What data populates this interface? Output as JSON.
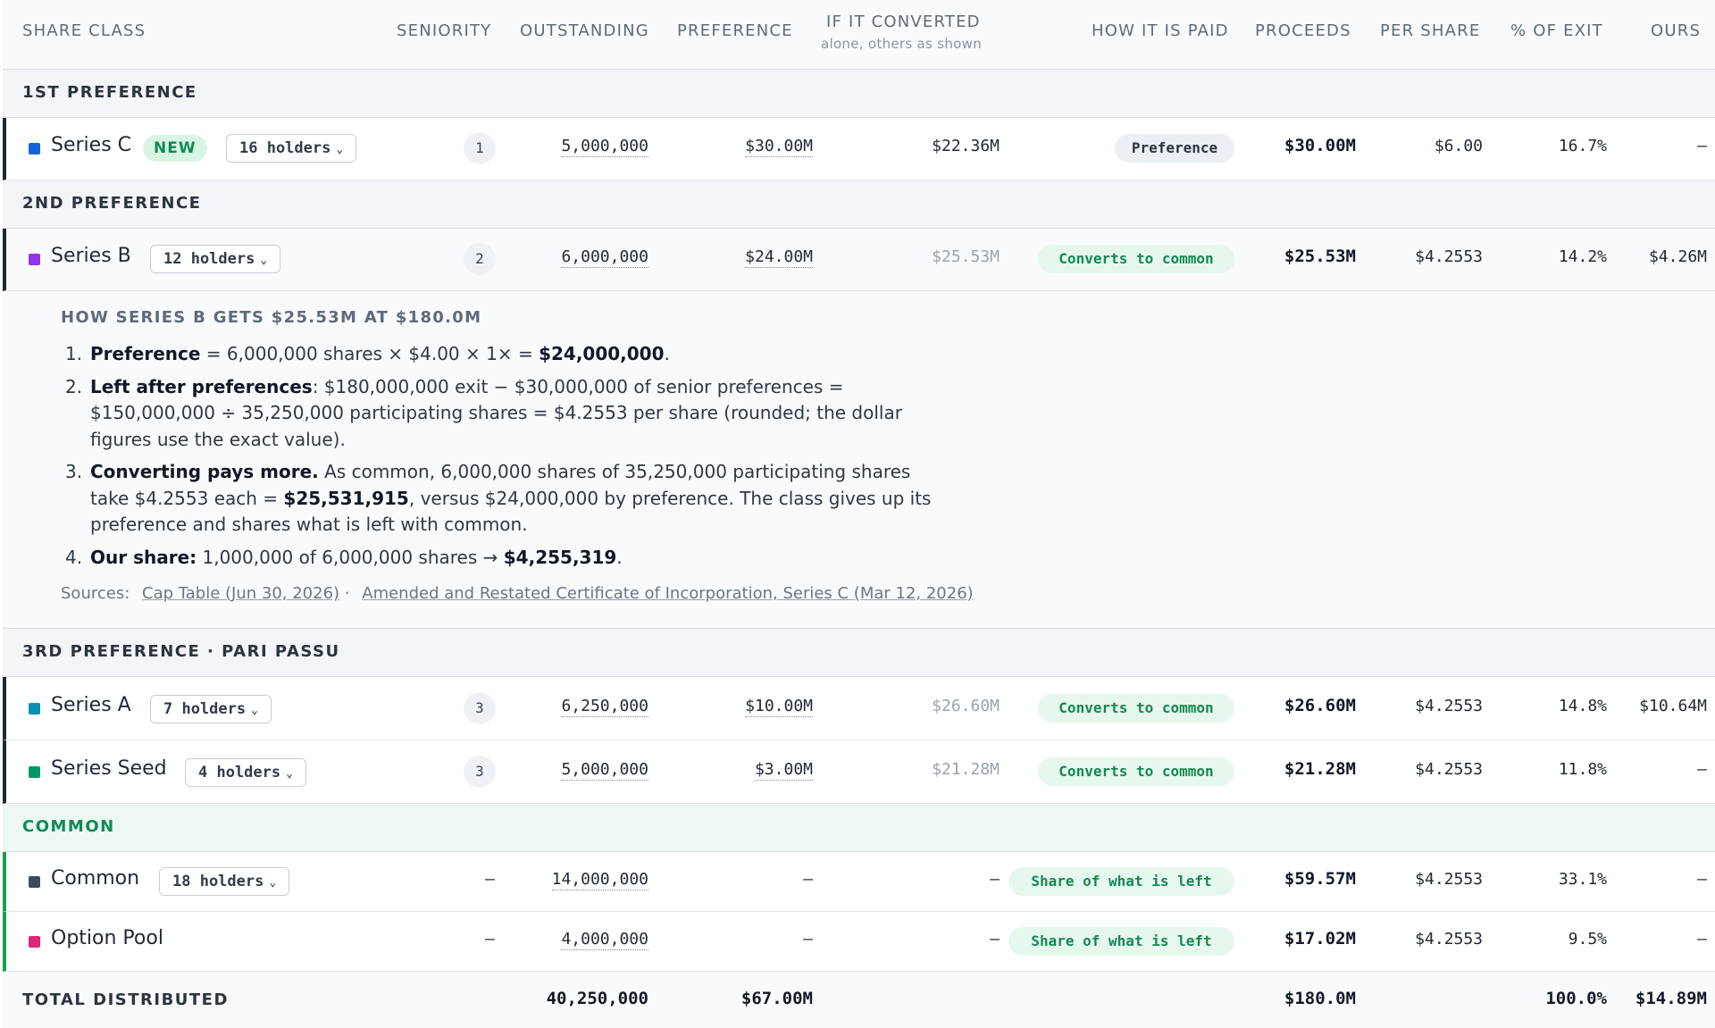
{
  "columns": {
    "share_class": "SHARE CLASS",
    "seniority": "SENIORITY",
    "outstanding": "OUTSTANDING",
    "preference": "PREFERENCE",
    "if_converted": "IF IT CONVERTED",
    "if_converted_sub": "alone, others as shown",
    "how_paid": "HOW IT IS PAID",
    "proceeds": "PROCEEDS",
    "per_share": "PER SHARE",
    "pct_exit": "% OF EXIT",
    "ours": "OURS"
  },
  "groups": {
    "first": "1ST PREFERENCE",
    "second": "2ND PREFERENCE",
    "third": "3RD PREFERENCE · PARI PASSU",
    "common": "COMMON"
  },
  "rows": {
    "series_c": {
      "name": "Series C",
      "badge": "NEW",
      "holders": "16 holders",
      "color": "#1565d8",
      "seniority": "1",
      "outstanding": "5,000,000",
      "preference": "$30.00M",
      "if_converted": "$22.36M",
      "how_paid": "Preference",
      "proceeds": "$30.00M",
      "per_share": "$6.00",
      "pct_exit": "16.7%",
      "ours": "—"
    },
    "series_b": {
      "name": "Series B",
      "holders": "12 holders",
      "color": "#9333ea",
      "seniority": "2",
      "outstanding": "6,000,000",
      "preference": "$24.00M",
      "if_converted": "$25.53M",
      "how_paid": "Converts to common",
      "proceeds": "$25.53M",
      "per_share": "$4.2553",
      "pct_exit": "14.2%",
      "ours": "$4.26M"
    },
    "series_a": {
      "name": "Series A",
      "holders": "7 holders",
      "color": "#0891b2",
      "seniority": "3",
      "outstanding": "6,250,000",
      "preference": "$10.00M",
      "if_converted": "$26.60M",
      "how_paid": "Converts to common",
      "proceeds": "$26.60M",
      "per_share": "$4.2553",
      "pct_exit": "14.8%",
      "ours": "$10.64M"
    },
    "series_seed": {
      "name": "Series Seed",
      "holders": "4 holders",
      "color": "#059669",
      "seniority": "3",
      "outstanding": "5,000,000",
      "preference": "$3.00M",
      "if_converted": "$21.28M",
      "how_paid": "Converts to common",
      "proceeds": "$21.28M",
      "per_share": "$4.2553",
      "pct_exit": "11.8%",
      "ours": "—"
    },
    "common": {
      "name": "Common",
      "holders": "18 holders",
      "color": "#3f4a5a",
      "seniority": "—",
      "outstanding": "14,000,000",
      "preference": "—",
      "if_converted": "—",
      "how_paid": "Share of what is left",
      "proceeds": "$59.57M",
      "per_share": "$4.2553",
      "pct_exit": "33.1%",
      "ours": "—"
    },
    "option_pool": {
      "name": "Option Pool",
      "color": "#db2777",
      "seniority": "—",
      "outstanding": "4,000,000",
      "preference": "—",
      "if_converted": "—",
      "how_paid": "Share of what is left",
      "proceeds": "$17.02M",
      "per_share": "$4.2553",
      "pct_exit": "9.5%",
      "ours": "—"
    }
  },
  "explainer": {
    "title": "HOW SERIES B GETS $25.53M AT $180.0M",
    "items": [
      {
        "n": "1.",
        "lead": "Preference",
        "text1": " = 6,000,000 shares × $4.00 × 1× = ",
        "strong": "$24,000,000",
        "text2": "."
      },
      {
        "n": "2.",
        "lead": "Left after preferences",
        "text1": ": $180,000,000 exit − $30,000,000 of senior preferences = $150,000,000 ÷ 35,250,000 participating shares = $4.2553 per share (rounded; the dollar figures use the exact value).",
        "strong": "",
        "text2": ""
      },
      {
        "n": "3.",
        "lead": "Converting pays more.",
        "text1": " As common, 6,000,000 shares of 35,250,000 participating shares take $4.2553 each = ",
        "strong": "$25,531,915",
        "text2": ", versus $24,000,000 by preference. The class gives up its preference and shares what is left with common."
      },
      {
        "n": "4.",
        "lead": "Our share:",
        "text1": " 1,000,000 of 6,000,000 shares → ",
        "strong": "$4,255,319",
        "text2": "."
      }
    ],
    "sources_label": "Sources:",
    "source1": "Cap Table (Jun 30, 2026)",
    "separator": " ·",
    "source2": "Amended and Restated Certificate of Incorporation, Series C (Mar 12, 2026)"
  },
  "total": {
    "label": "TOTAL DISTRIBUTED",
    "outstanding": "40,250,000",
    "preference": "$67.00M",
    "proceeds": "$180.0M",
    "pct_exit": "100.0%",
    "ours": "$14.89M"
  }
}
